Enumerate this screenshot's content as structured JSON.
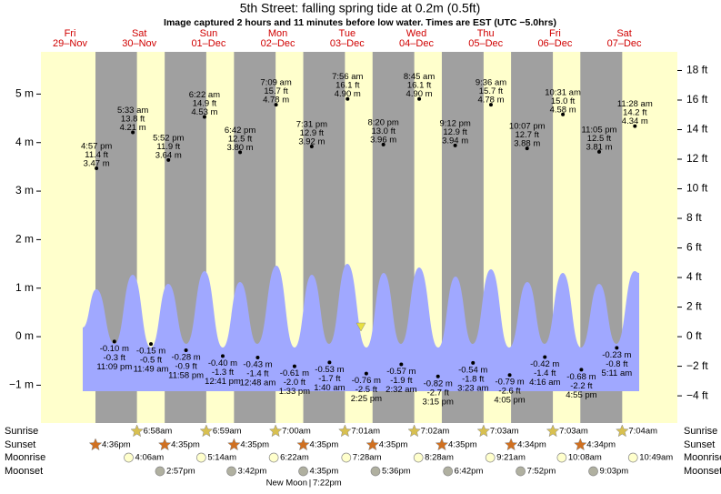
{
  "chart_data": {
    "type": "tide",
    "title": "5th Street: falling  spring tide at 0.2m (0.5ft)",
    "subtitle": "Image captured 2 hours and 11 minutes before low water. Times are EST (UTC −5.0hrs)",
    "days": [
      {
        "day": "Fri",
        "date": "29–Nov"
      },
      {
        "day": "Sat",
        "date": "30–Nov"
      },
      {
        "day": "Sun",
        "date": "01–Dec"
      },
      {
        "day": "Mon",
        "date": "02–Dec"
      },
      {
        "day": "Tue",
        "date": "03–Dec"
      },
      {
        "day": "Wed",
        "date": "04–Dec"
      },
      {
        "day": "Thu",
        "date": "05–Dec"
      },
      {
        "day": "Fri",
        "date": "06–Dec"
      },
      {
        "day": "Sat",
        "date": "07–Dec"
      }
    ],
    "ylim": [
      -1.78,
      5.87
    ],
    "yticks": [
      {
        "value": -1,
        "label": "−1 m"
      },
      {
        "value": 0,
        "label": "0 m"
      },
      {
        "value": 1,
        "label": "1 m"
      },
      {
        "value": 2,
        "label": "2 m"
      },
      {
        "value": 3,
        "label": "3 m"
      },
      {
        "value": 4,
        "label": "4 m"
      },
      {
        "value": 5,
        "label": "5 m"
      }
    ],
    "y2lim": [
      -5.84,
      19.26
    ],
    "y2ticks": [
      {
        "value": -4,
        "label": "−4 ft"
      },
      {
        "value": -2,
        "label": "−2 ft"
      },
      {
        "value": 0,
        "label": "0 ft"
      },
      {
        "value": 2,
        "label": "2 ft"
      },
      {
        "value": 4,
        "label": "4 ft"
      },
      {
        "value": 6,
        "label": "6 ft"
      },
      {
        "value": 8,
        "label": "8 ft"
      },
      {
        "value": 10,
        "label": "10 ft"
      },
      {
        "value": 12,
        "label": "12 ft"
      },
      {
        "value": 14,
        "label": "14 ft"
      },
      {
        "value": 16,
        "label": "16 ft"
      },
      {
        "value": 18,
        "label": "18 ft"
      }
    ],
    "tides": {
      "times": [
        "4:57 pm",
        "11:09 pm",
        "5:33 am",
        "11:49 am",
        "5:52 pm",
        "11:58 pm",
        "6:22 am",
        "12:41 pm",
        "6:42 pm",
        "12:48 am",
        "7:09 am",
        "1:33 pm",
        "7:31 pm",
        "1:40 am",
        "7:56 am",
        "2:25 pm",
        "8:20 pm",
        "2:32 am",
        "8:45 am",
        "3:15 pm",
        "9:12 pm",
        "3:23 am",
        "9:36 am",
        "4:05 pm",
        "10:07 pm",
        "4:16 am",
        "10:31 am",
        "4:55 pm",
        "11:05 pm",
        "5:11 am",
        "11:28 am"
      ],
      "values": [
        3.47,
        -0.1,
        4.21,
        -0.15,
        3.64,
        -0.28,
        4.53,
        -0.4,
        3.8,
        -0.43,
        4.78,
        -0.61,
        3.92,
        -0.53,
        4.9,
        -0.76,
        3.96,
        -0.57,
        4.9,
        -0.82,
        3.94,
        -0.54,
        4.78,
        -0.79,
        3.88,
        -0.42,
        4.58,
        -0.68,
        3.81,
        -0.23,
        4.34
      ],
      "value_labels": [
        "3.47 m",
        "-0.10 m",
        "4.21 m",
        "-0.15 m",
        "3.64 m",
        "-0.28 m",
        "4.53 m",
        "-0.40 m",
        "3.80 m",
        "-0.43 m",
        "4.78 m",
        "-0.61 m",
        "3.92 m",
        "-0.53 m",
        "4.90 m",
        "-0.76 m",
        "3.96 m",
        "-0.57 m",
        "4.90 m",
        "-0.82 m",
        "3.94 m",
        "-0.54 m",
        "4.78 m",
        "-0.79 m",
        "3.88 m",
        "-0.42 m",
        "4.58 m",
        "-0.68 m",
        "3.81 m",
        "-0.23 m",
        "4.34 m"
      ],
      "ft_labels": [
        "11.4 ft",
        "-0.3 ft",
        "13.8 ft",
        "-0.5 ft",
        "11.9 ft",
        "-0.9 ft",
        "14.9 ft",
        "-1.3 ft",
        "12.5 ft",
        "-1.4 ft",
        "15.7 ft",
        "-2.0 ft",
        "12.9 ft",
        "-1.7 ft",
        "16.1 ft",
        "-2.5 ft",
        "13.0 ft",
        "-1.9 ft",
        "16.1 ft",
        "-2.7 ft",
        "12.9 ft",
        "-1.8 ft",
        "15.7 ft",
        "-2.6 ft",
        "12.7 ft",
        "-1.4 ft",
        "15.0 ft",
        "-2.2 ft",
        "12.5 ft",
        "-0.8 ft",
        "14.2 ft"
      ]
    },
    "rows": [
      {
        "label": "Sunrise",
        "events": [
          "6:58am",
          "6:59am",
          "7:00am",
          "7:01am",
          "7:02am",
          "7:03am",
          "7:03am",
          "7:04am"
        ]
      },
      {
        "label": "Sunset",
        "events": [
          "4:36pm",
          "4:35pm",
          "4:35pm",
          "4:35pm",
          "4:35pm",
          "4:35pm",
          "4:34pm",
          "4:34pm"
        ]
      },
      {
        "label": "Moonrise",
        "events": [
          "4:06am",
          "5:14am",
          "6:22am",
          "7:28am",
          "8:28am",
          "9:21am",
          "10:08am",
          "10:49am"
        ]
      },
      {
        "label": "Moonset",
        "events": [
          "2:57pm",
          "3:42pm",
          "4:35pm",
          "5:36pm",
          "6:42pm",
          "7:52pm",
          "9:03pm"
        ]
      }
    ],
    "moon_phase": "New Moon",
    "moon_phase_time": "7:22pm"
  }
}
